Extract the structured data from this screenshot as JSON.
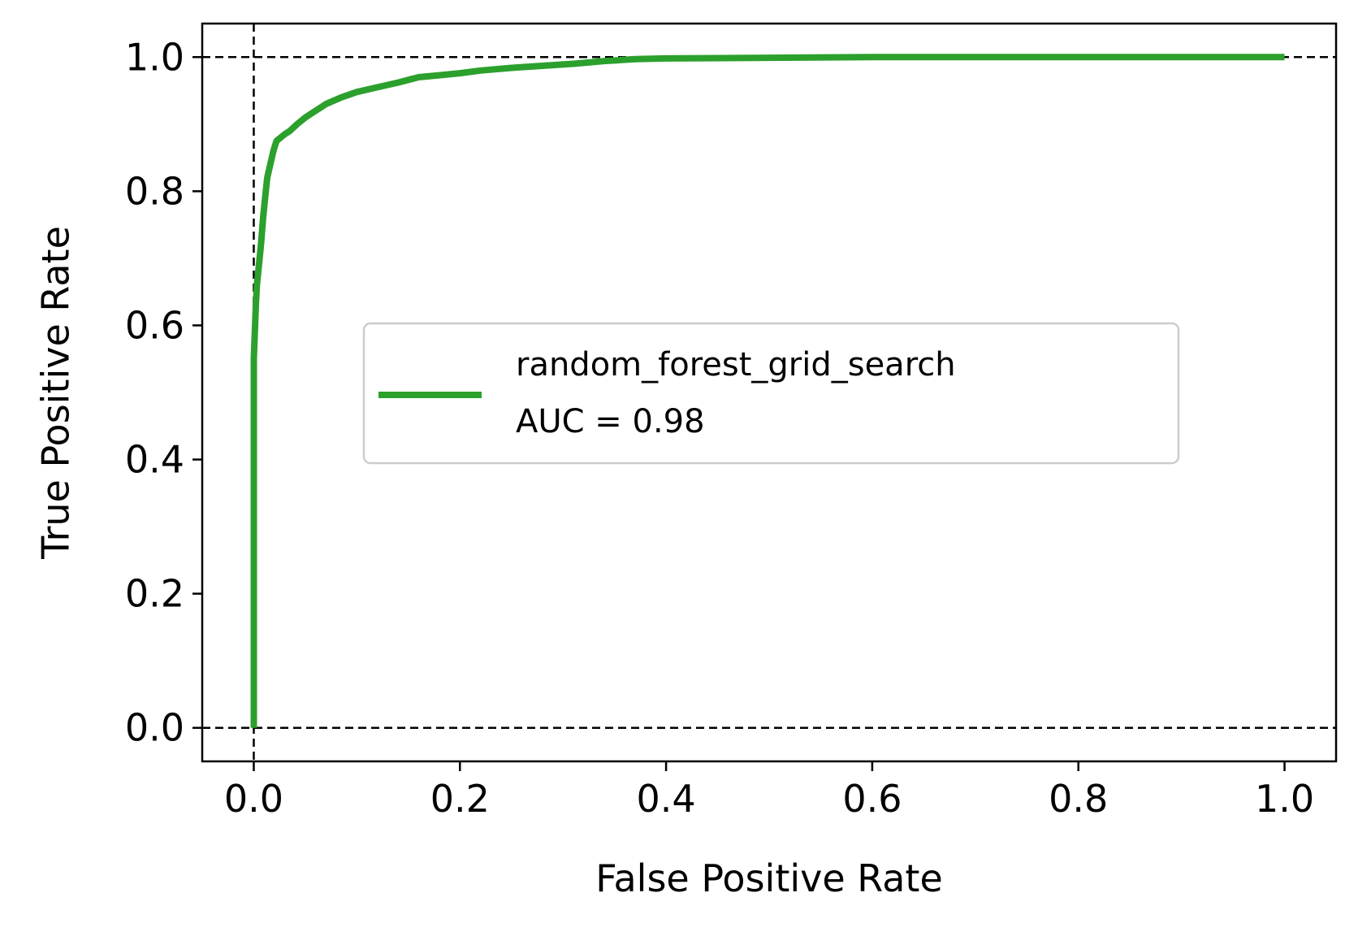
{
  "chart_data": {
    "type": "line",
    "xlabel": "False Positive Rate",
    "ylabel": "True Positive Rate",
    "xlim": [
      -0.05,
      1.05
    ],
    "ylim": [
      -0.05,
      1.05
    ],
    "x_ticks": [
      0.0,
      0.2,
      0.4,
      0.6,
      0.8,
      1.0
    ],
    "y_ticks": [
      0.0,
      0.2,
      0.4,
      0.6,
      0.8,
      1.0
    ],
    "x_tick_labels": [
      "0.0",
      "0.2",
      "0.4",
      "0.6",
      "0.8",
      "1.0"
    ],
    "y_tick_labels": [
      "0.0",
      "0.2",
      "0.4",
      "0.6",
      "0.8",
      "1.0"
    ],
    "grid": false,
    "reference_lines": [
      {
        "orientation": "horizontal",
        "value": 0.0,
        "style": "dashed",
        "color": "#000000"
      },
      {
        "orientation": "horizontal",
        "value": 1.0,
        "style": "dashed",
        "color": "#000000"
      },
      {
        "orientation": "vertical",
        "value": 0.0,
        "style": "dashed",
        "color": "#000000"
      }
    ],
    "legend": {
      "placement": "center",
      "entries": [
        {
          "line1": "random_forest_grid_search",
          "line2": "AUC = 0.98"
        }
      ]
    },
    "series": [
      {
        "name": "random_forest_grid_search",
        "auc_label": "AUC = 0.98",
        "color": "#2ca02c",
        "x": [
          0.0,
          0.0,
          0.002,
          0.003,
          0.005,
          0.007,
          0.009,
          0.011,
          0.013,
          0.016,
          0.019,
          0.022,
          0.026,
          0.03,
          0.035,
          0.042,
          0.05,
          0.06,
          0.07,
          0.085,
          0.1,
          0.12,
          0.14,
          0.16,
          0.18,
          0.2,
          0.22,
          0.25,
          0.28,
          0.31,
          0.34,
          0.37,
          0.4,
          0.5,
          0.6,
          0.7,
          0.8,
          0.9,
          1.0
        ],
        "y": [
          0.0,
          0.55,
          0.63,
          0.66,
          0.69,
          0.72,
          0.76,
          0.79,
          0.82,
          0.84,
          0.86,
          0.875,
          0.88,
          0.885,
          0.89,
          0.9,
          0.91,
          0.92,
          0.93,
          0.94,
          0.948,
          0.955,
          0.962,
          0.97,
          0.973,
          0.976,
          0.98,
          0.984,
          0.987,
          0.99,
          0.994,
          0.997,
          0.998,
          0.999,
          1.0,
          1.0,
          1.0,
          1.0,
          1.0
        ]
      }
    ]
  }
}
